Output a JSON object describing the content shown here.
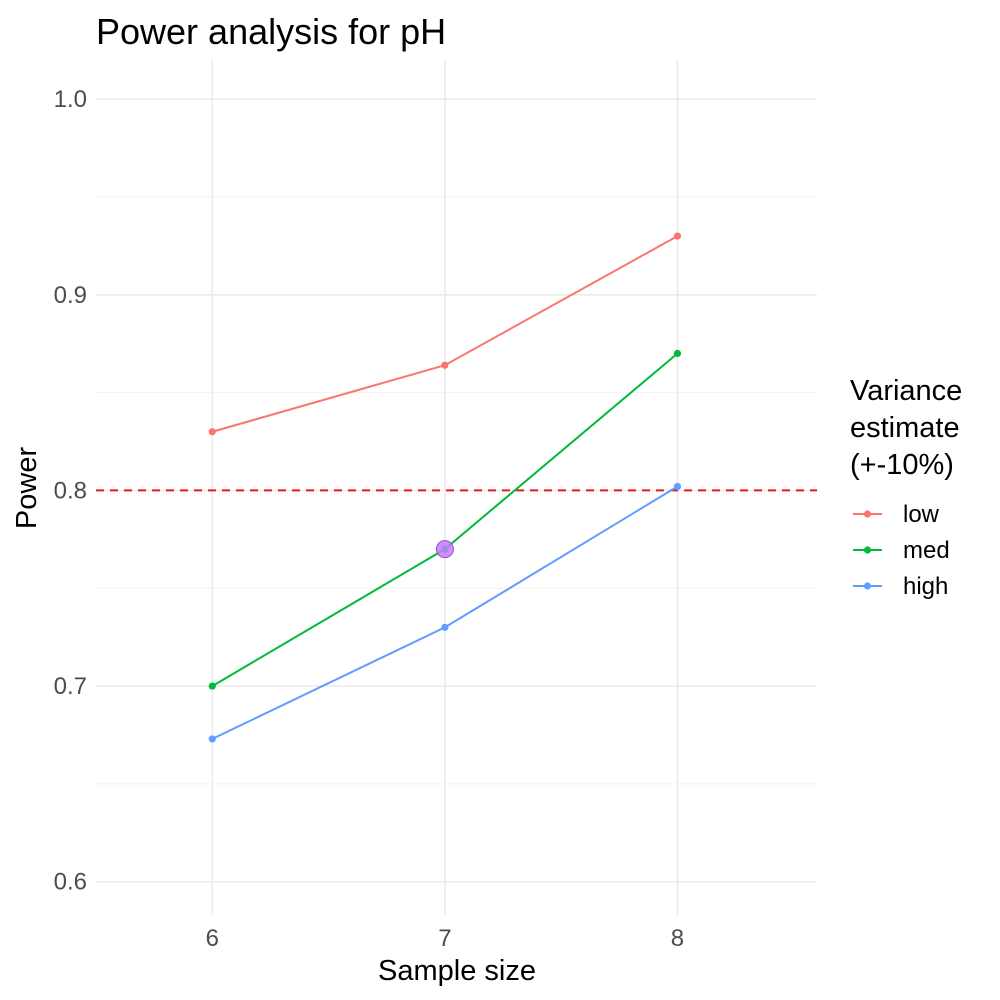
{
  "chart_data": {
    "type": "line",
    "title": "Power analysis for pH",
    "xlabel": "Sample size",
    "ylabel": "Power",
    "x": [
      6,
      7,
      8
    ],
    "x_ticks": [
      "6",
      "7",
      "8"
    ],
    "xlim": [
      5.5,
      8.6
    ],
    "ylim": [
      0.583,
      1.02
    ],
    "y_ticks": [
      "0.6",
      "0.7",
      "0.8",
      "0.9",
      "1.0"
    ],
    "y_tick_values": [
      0.6,
      0.7,
      0.8,
      0.9,
      1.0
    ],
    "y_minor_values": [
      0.65,
      0.75,
      0.85,
      0.95
    ],
    "grid": true,
    "reference_line": {
      "y": 0.8,
      "color": "#e41a1c",
      "style": "dashed"
    },
    "series": [
      {
        "name": "low",
        "color": "#f8766d",
        "values": [
          0.83,
          0.864,
          0.93
        ]
      },
      {
        "name": "med",
        "color": "#00ba38",
        "values": [
          0.7,
          0.77,
          0.87
        ]
      },
      {
        "name": "high",
        "color": "#619cff",
        "values": [
          0.673,
          0.73,
          0.802
        ]
      }
    ],
    "highlight": {
      "x": 7,
      "y": 0.77,
      "color": "#c77cff"
    },
    "legend": {
      "title_lines": [
        "Variance",
        "estimate",
        "(+-10%)"
      ],
      "placement": "right"
    }
  }
}
